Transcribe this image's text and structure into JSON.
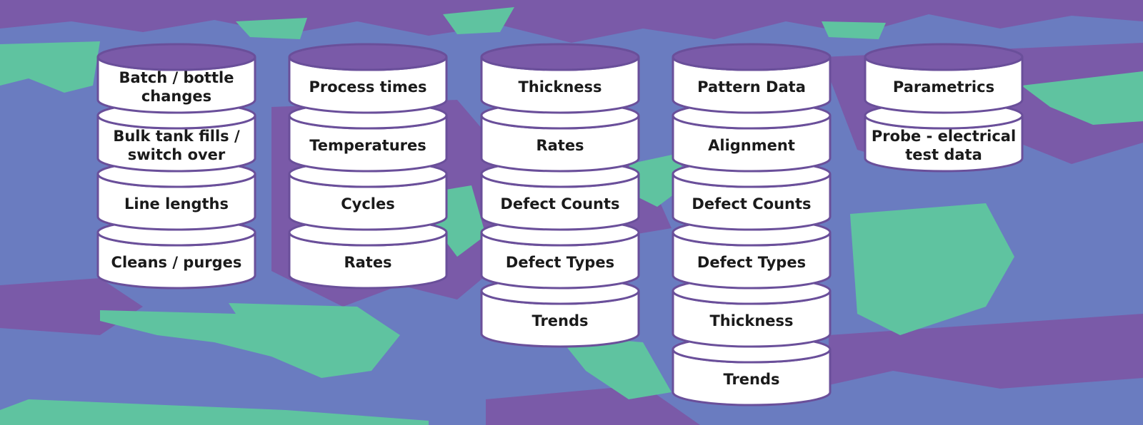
{
  "colors": {
    "background_blue": "#6a7cc0",
    "purple": "#7a5aa8",
    "green": "#5fc3a0",
    "cylinder_fill": "#ffffff",
    "cylinder_stroke": "#6a4f9a",
    "text": "#1a1a1a"
  },
  "columns": [
    {
      "items": [
        "Batch / bottle changes",
        "Bulk tank fills / switch over",
        "Line lengths",
        "Cleans / purges"
      ]
    },
    {
      "items": [
        "Process times",
        "Temperatures",
        "Cycles",
        "Rates"
      ]
    },
    {
      "items": [
        "Thickness",
        "Rates",
        "Defect Counts",
        "Defect Types",
        "Trends"
      ]
    },
    {
      "items": [
        "Pattern Data",
        "Alignment",
        "Defect Counts",
        "Defect Types",
        "Thickness",
        "Trends"
      ]
    },
    {
      "items": [
        "Parametrics",
        "Probe - electrical test data"
      ]
    }
  ]
}
